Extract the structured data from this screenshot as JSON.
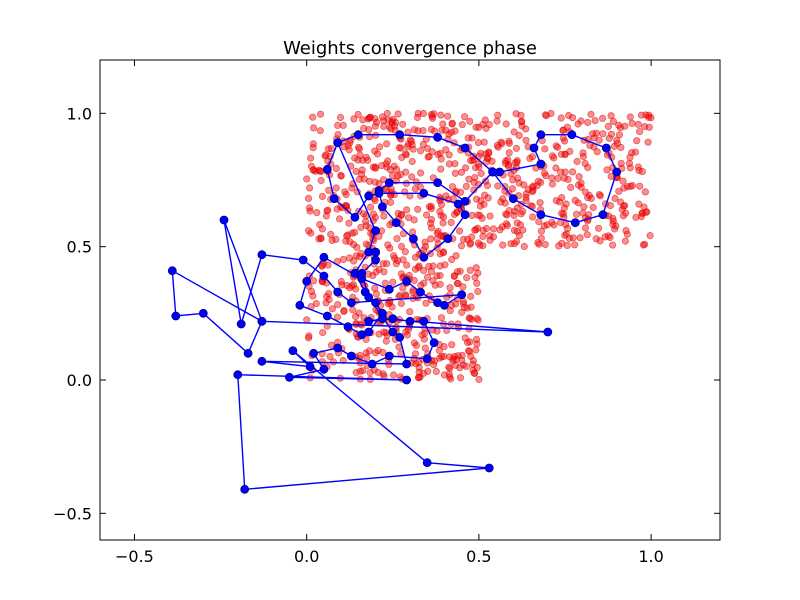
{
  "chart_data": {
    "type": "scatter",
    "title": "Weights convergence phase",
    "xlabel": "",
    "ylabel": "",
    "xlim": [
      -0.6,
      1.2
    ],
    "ylim": [
      -0.6,
      1.2
    ],
    "grid": false,
    "x_ticks": [
      -0.5,
      0.0,
      0.5,
      1.0
    ],
    "y_ticks": [
      -0.5,
      0.0,
      0.5,
      1.0
    ],
    "x_tick_labels": [
      "−0.5",
      "0.0",
      "0.5",
      "1.0"
    ],
    "y_tick_labels": [
      "−0.5",
      "0.0",
      "0.5",
      "1.0"
    ],
    "colors": {
      "samples": "#ff0000",
      "weights": "#0000ff"
    },
    "sample_regions": [
      {
        "x": [
          0.0,
          0.5
        ],
        "y": [
          0.0,
          0.5
        ],
        "count": 340
      },
      {
        "x": [
          0.0,
          1.0
        ],
        "y": [
          0.5,
          1.0
        ],
        "count": 680
      }
    ],
    "weights_path": [
      [
        0.09,
        0.89
      ],
      [
        0.15,
        0.92
      ],
      [
        0.27,
        0.92
      ],
      [
        0.38,
        0.91
      ],
      [
        0.46,
        0.87
      ],
      [
        0.54,
        0.78
      ],
      [
        0.6,
        0.68
      ],
      [
        0.68,
        0.62
      ],
      [
        0.78,
        0.59
      ],
      [
        0.86,
        0.62
      ],
      [
        0.9,
        0.78
      ],
      [
        0.87,
        0.87
      ],
      [
        0.77,
        0.92
      ],
      [
        0.68,
        0.92
      ],
      [
        0.66,
        0.87
      ],
      [
        0.68,
        0.81
      ],
      [
        0.56,
        0.78
      ],
      [
        0.54,
        0.78
      ],
      [
        0.46,
        0.67
      ],
      [
        0.38,
        0.74
      ],
      [
        0.24,
        0.74
      ],
      [
        0.21,
        0.71
      ],
      [
        0.22,
        0.65
      ],
      [
        0.26,
        0.59
      ],
      [
        0.31,
        0.53
      ],
      [
        0.34,
        0.46
      ],
      [
        0.41,
        0.53
      ],
      [
        0.46,
        0.62
      ],
      [
        0.44,
        0.66
      ],
      [
        0.34,
        0.7
      ],
      [
        0.21,
        0.7
      ],
      [
        0.18,
        0.69
      ],
      [
        0.14,
        0.61
      ],
      [
        0.08,
        0.68
      ],
      [
        0.06,
        0.79
      ],
      [
        0.09,
        0.89
      ],
      [
        0.2,
        0.56
      ],
      [
        0.18,
        0.48
      ],
      [
        0.14,
        0.4
      ],
      [
        0.17,
        0.33
      ],
      [
        0.2,
        0.29
      ],
      [
        0.22,
        0.25
      ],
      [
        0.18,
        0.18
      ],
      [
        0.16,
        0.17
      ],
      [
        0.12,
        0.2
      ],
      [
        0.06,
        0.24
      ],
      [
        -0.02,
        0.28
      ],
      [
        0.0,
        0.37
      ],
      [
        0.05,
        0.46
      ],
      [
        0.16,
        0.38
      ],
      [
        0.24,
        0.34
      ],
      [
        0.29,
        0.37
      ],
      [
        0.33,
        0.33
      ],
      [
        0.38,
        0.29
      ],
      [
        0.4,
        0.28
      ],
      [
        0.45,
        0.32
      ],
      [
        0.13,
        0.29
      ],
      [
        0.09,
        0.33
      ],
      [
        0.05,
        0.39
      ],
      [
        -0.01,
        0.45
      ],
      [
        -0.13,
        0.47
      ],
      [
        -0.19,
        0.21
      ],
      [
        -0.24,
        0.6
      ],
      [
        -0.13,
        0.22
      ],
      [
        -0.17,
        0.1
      ],
      [
        -0.3,
        0.25
      ],
      [
        -0.38,
        0.24
      ],
      [
        -0.39,
        0.41
      ],
      [
        -0.13,
        0.22
      ],
      [
        0.7,
        0.18
      ],
      [
        0.22,
        0.23
      ],
      [
        0.18,
        0.22
      ],
      [
        0.25,
        0.23
      ],
      [
        0.3,
        0.22
      ],
      [
        0.34,
        0.22
      ],
      [
        0.37,
        0.14
      ],
      [
        0.35,
        0.08
      ],
      [
        0.24,
        0.09
      ],
      [
        0.19,
        0.06
      ],
      [
        0.13,
        0.09
      ],
      [
        0.09,
        0.12
      ],
      [
        0.02,
        0.1
      ],
      [
        0.05,
        0.04
      ],
      [
        -0.05,
        0.01
      ],
      [
        0.29,
        0.0
      ],
      [
        -0.2,
        0.02
      ],
      [
        -0.18,
        -0.41
      ],
      [
        0.53,
        -0.33
      ],
      [
        0.35,
        -0.31
      ],
      [
        -0.04,
        0.11
      ],
      [
        0.01,
        0.05
      ],
      [
        -0.13,
        0.07
      ],
      [
        0.29,
        0.06
      ],
      [
        0.27,
        0.16
      ],
      [
        0.25,
        0.18
      ],
      [
        0.18,
        0.31
      ],
      [
        0.16,
        0.4
      ],
      [
        0.2,
        0.45
      ],
      [
        0.2,
        0.48
      ]
    ]
  }
}
